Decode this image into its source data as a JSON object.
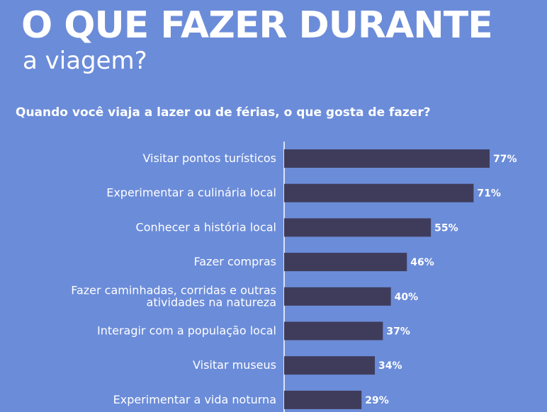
{
  "header": {
    "title": "O QUE FAZER DURANTE",
    "subtitle": "a viagem?"
  },
  "chart_data": {
    "type": "bar",
    "orientation": "horizontal",
    "title": "Quando você viaja a lazer ou de férias, o que gosta de fazer?",
    "categories": [
      [
        "Visitar pontos turísticos"
      ],
      [
        "Experimentar a culinária local"
      ],
      [
        "Conhecer a história local"
      ],
      [
        "Fazer compras"
      ],
      [
        "Fazer caminhadas, corridas e outras",
        "atividades na natureza"
      ],
      [
        "Interagir com a população local"
      ],
      [
        "Visitar museus"
      ],
      [
        "Experimentar a vida noturna"
      ]
    ],
    "values": [
      77,
      71,
      55,
      46,
      40,
      37,
      34,
      29
    ],
    "value_labels": [
      "77%",
      "71%",
      "55%",
      "46%",
      "40%",
      "37%",
      "34%",
      "29%"
    ],
    "grid": false,
    "bar_color": "#3f3c5b",
    "background_color": "#6b8cd9"
  }
}
